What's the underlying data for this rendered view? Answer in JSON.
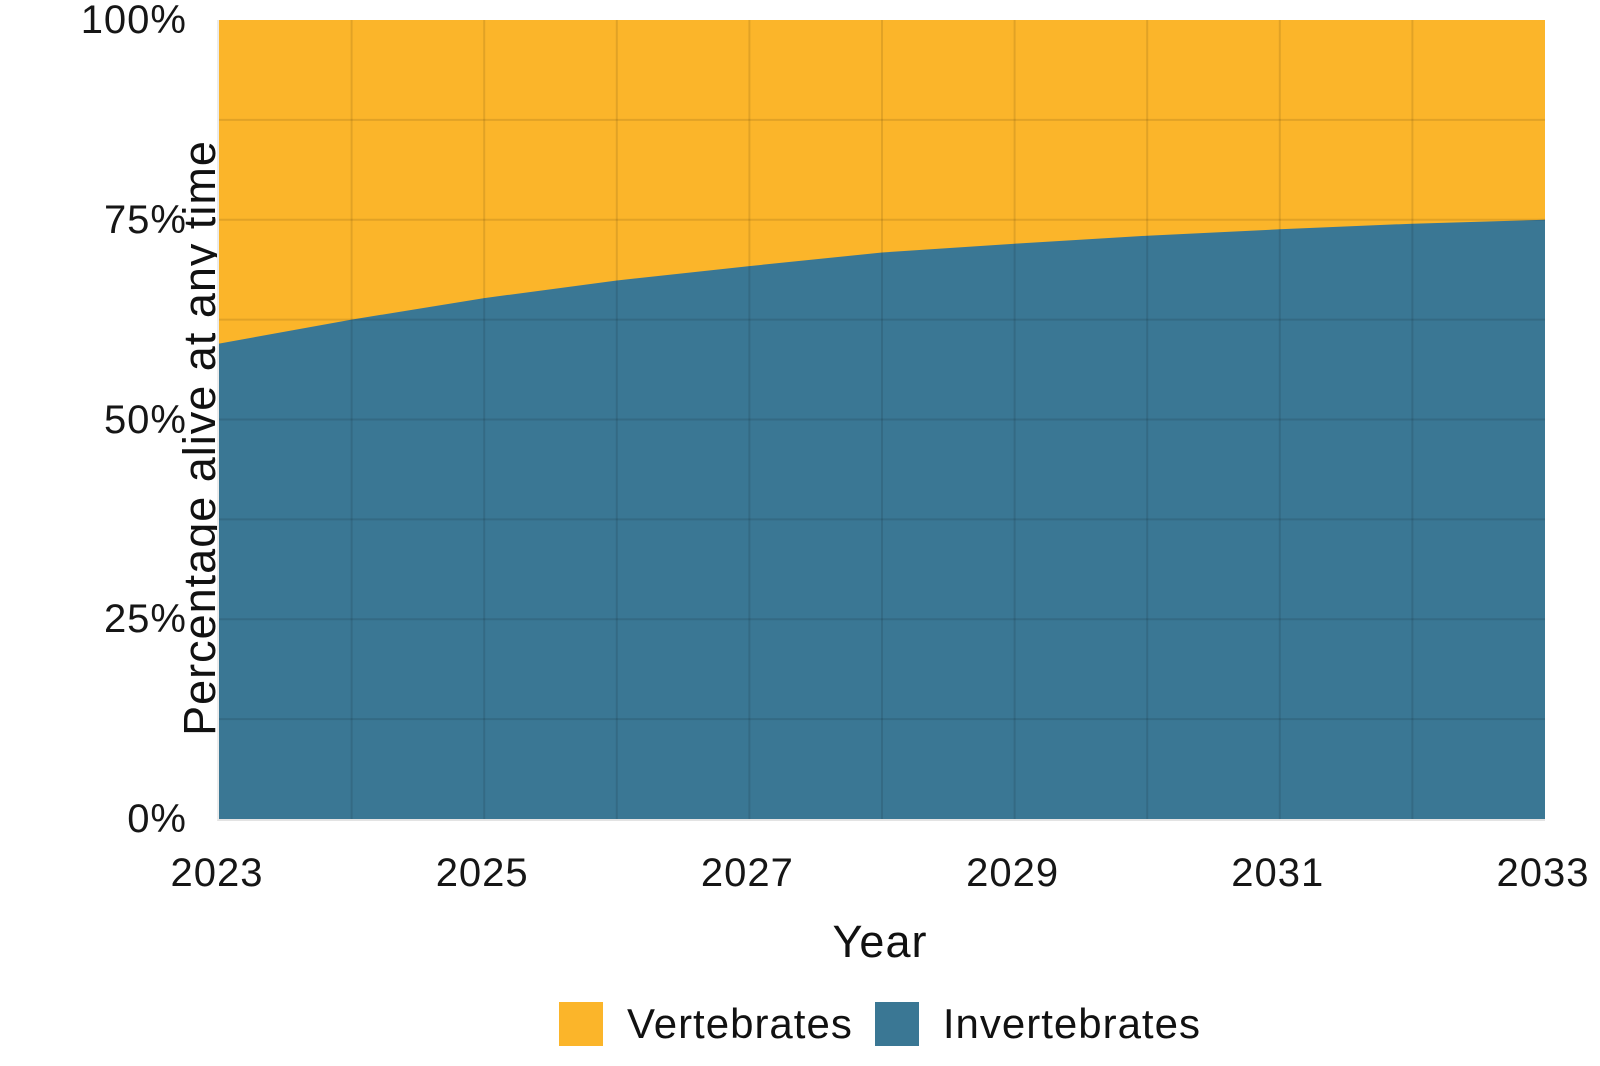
{
  "chart_data": {
    "type": "area",
    "stacked": true,
    "normalized_percent": true,
    "title": "",
    "xlabel": "Year",
    "ylabel": "Percentage alive at any time",
    "x": [
      2023,
      2024,
      2025,
      2026,
      2027,
      2028,
      2029,
      2030,
      2031,
      2032,
      2033
    ],
    "series": [
      {
        "name": "Vertebrates",
        "color": "#FBB52A",
        "values": [
          40.5,
          37.5,
          34.8,
          32.6,
          30.8,
          29.1,
          28.0,
          27.0,
          26.2,
          25.5,
          25.0
        ]
      },
      {
        "name": "Invertebrates",
        "color": "#3A7794",
        "values": [
          59.5,
          62.5,
          65.2,
          67.4,
          69.2,
          70.9,
          72.0,
          73.0,
          73.8,
          74.5,
          75.0
        ]
      }
    ],
    "xlim": [
      2023,
      2033
    ],
    "ylim": [
      0,
      100
    ],
    "x_tick_labels": [
      "2023",
      "2025",
      "2027",
      "2029",
      "2031",
      "2033"
    ],
    "x_tick_values": [
      2023,
      2025,
      2027,
      2029,
      2031,
      2033
    ],
    "y_tick_labels": [
      "0%",
      "25%",
      "50%",
      "75%",
      "100%"
    ],
    "y_tick_values": [
      0,
      25,
      50,
      75,
      100
    ],
    "grid": {
      "horizontal_step_percent": 12.5,
      "vertical_step_years": 1,
      "line_color": "rgba(0,0,0,0.10)",
      "on_top_of_fills": true
    },
    "legend": {
      "position": "bottom-center",
      "entries": [
        "Vertebrates",
        "Invertebrates"
      ]
    }
  }
}
